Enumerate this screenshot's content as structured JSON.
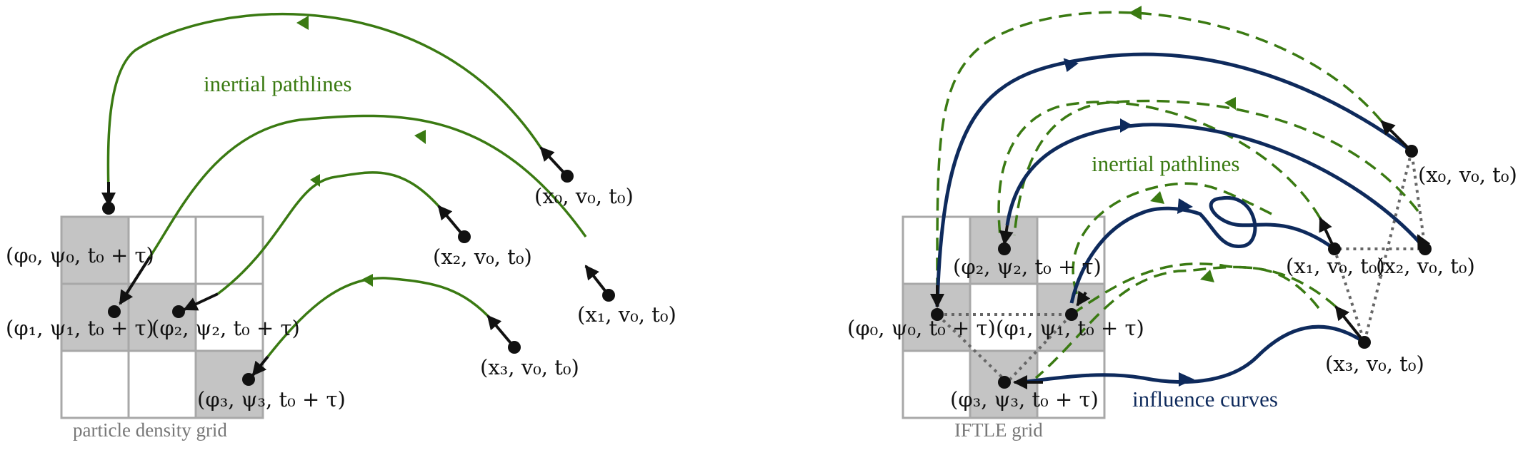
{
  "colors": {
    "green": "#3a7a12",
    "blue": "#0e2a5c",
    "black": "#111111",
    "grid_stroke": "#a8a8a8",
    "cell_fill": "#c4c4c4",
    "caption": "#777777"
  },
  "left_panel": {
    "caption": "particle density grid",
    "curve_label": "inertial pathlines",
    "start_labels": {
      "p0": "(x₀, v₀, t₀)",
      "p1": "(x₁, v₀, t₀)",
      "p2": "(x₂, v₀, t₀)",
      "p3": "(x₃, v₀, t₀)"
    },
    "end_labels": {
      "p0": "(φ₀, ψ₀, t₀ + τ)",
      "p1": "(φ₁, ψ₁, t₀ + τ)",
      "p2": "(φ₂, ψ₂, t₀ + τ)",
      "p3": "(φ₃, ψ₃, t₀ + τ)"
    }
  },
  "right_panel": {
    "caption": "IFTLE grid",
    "green_label": "inertial pathlines",
    "blue_label": "influence curves",
    "start_labels": {
      "p0": "(x₀, v₀, t₀)",
      "p1": "(x₁, v₀, t₀)",
      "p2": "(x₂, v₀, t₀)",
      "p3": "(x₃, v₀, t₀)"
    },
    "end_labels": {
      "p0": "(φ₀, ψ₀, t₀ + τ)",
      "p1": "(φ₁, ψ₁, t₀ + τ)",
      "p2": "(φ₂, ψ₂, t₀ + τ)",
      "p3": "(φ₃, ψ₃, t₀ + τ)"
    }
  }
}
